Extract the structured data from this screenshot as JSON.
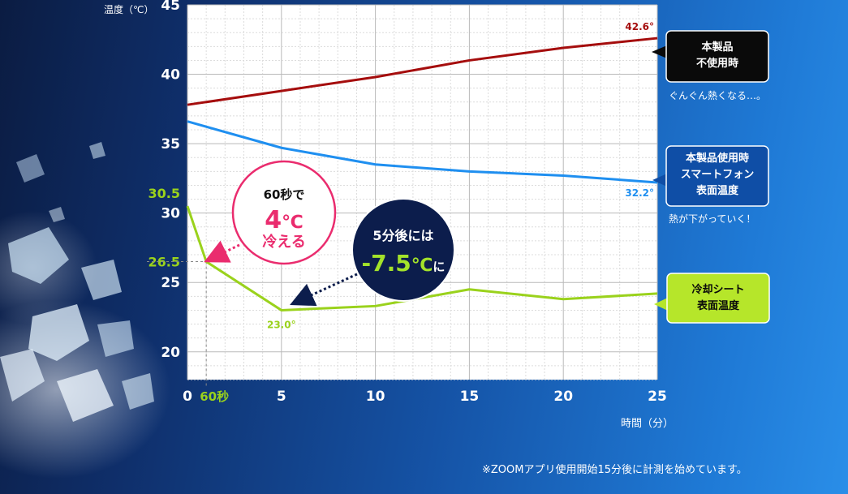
{
  "colors": {
    "unused_line": "#a50d0d",
    "phone_line": "#1f8ff0",
    "sheet_line": "#9ad21c",
    "phone_label_bg": "#0f4ea6",
    "unused_label_bg": "#0a0a0a",
    "sheet_label_bg": "#b6e62a",
    "callout_pink": "#ea2c6e",
    "callout_navy": "#0c1d4c",
    "callout_green": "#a3e22a"
  },
  "chart_data": {
    "type": "line",
    "ylabel": "温度（℃）",
    "xlabel": "時間（分）",
    "xlim": [
      0,
      25
    ],
    "ylim": [
      18,
      45
    ],
    "y_ticks": [
      20,
      25,
      30,
      35,
      40,
      45
    ],
    "x_ticks": [
      0,
      5,
      10,
      15,
      20,
      25
    ],
    "x_tick_labels": [
      "0",
      "5",
      "10",
      "15",
      "20",
      "25"
    ],
    "grid": true,
    "series": [
      {
        "id": "unused",
        "color": "#a50d0d",
        "x": [
          0,
          5,
          10,
          15,
          20,
          25
        ],
        "values": [
          37.8,
          38.8,
          39.8,
          41.0,
          41.9,
          42.6
        ],
        "end_label": "42.6°"
      },
      {
        "id": "phone",
        "color": "#1f8ff0",
        "x": [
          0,
          5,
          10,
          15,
          20,
          25
        ],
        "values": [
          36.6,
          34.7,
          33.5,
          33.0,
          32.7,
          32.2
        ],
        "end_label": "32.2°"
      },
      {
        "id": "sheet",
        "color": "#9ad21c",
        "x": [
          0,
          1,
          5,
          10,
          15,
          20,
          25
        ],
        "values": [
          30.5,
          26.5,
          23.0,
          23.3,
          24.5,
          23.8,
          24.2
        ],
        "min_label": "23.0°"
      }
    ],
    "extra_y_labels": {
      "start": "30.5",
      "one_minute": "26.5"
    },
    "one_minute_tick": "60秒"
  },
  "legend": {
    "unused": {
      "line1": "本製品",
      "line2": "不使用時",
      "note": "ぐんぐん熱くなる…。"
    },
    "phone": {
      "line1": "本製品使用時",
      "line2": "スマートフォン",
      "line3": "表面温度",
      "note": "熱が下がっていく！"
    },
    "sheet": {
      "line1": "冷却シート",
      "line2": "表面温度"
    }
  },
  "callouts": {
    "pink": {
      "line1": "60秒で",
      "big": "4",
      "unit": "℃",
      "line3": "冷える"
    },
    "navy": {
      "line1": "5分後には",
      "big": "-7.5",
      "unit": "℃",
      "suffix": "に"
    }
  },
  "footnote": "※ZOOMアプリ使用開始15分後に計測を始めています。"
}
